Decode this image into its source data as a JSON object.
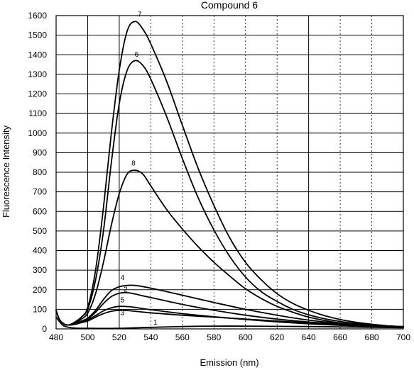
{
  "chart_data": {
    "type": "line",
    "title": "Compound 6",
    "xlabel": "Emission (nm)",
    "ylabel": "Fluorescence Intensity",
    "xlim": [
      480,
      700
    ],
    "ylim": [
      0,
      1600
    ],
    "x_ticks": [
      "480",
      "500",
      "520",
      "540",
      "560",
      "580",
      "600",
      "620",
      "640",
      "660",
      "680",
      "700"
    ],
    "y_ticks": [
      "0",
      "100",
      "200",
      "300",
      "400",
      "500",
      "600",
      "700",
      "800",
      "900",
      "1000",
      "1100",
      "1200",
      "1300",
      "1400",
      "1500",
      "1600"
    ],
    "grid": true,
    "series": [
      {
        "name": "1",
        "points": [
          [
            480,
            60
          ],
          [
            484,
            20
          ],
          [
            488,
            8
          ],
          [
            492,
            4
          ],
          [
            500,
            3
          ],
          [
            520,
            3
          ],
          [
            540,
            8
          ],
          [
            560,
            12
          ],
          [
            580,
            14
          ],
          [
            600,
            14
          ],
          [
            620,
            13
          ],
          [
            640,
            12
          ],
          [
            660,
            10
          ],
          [
            680,
            8
          ],
          [
            700,
            6
          ]
        ]
      },
      {
        "name": "2",
        "points": [
          [
            480,
            95
          ],
          [
            482,
            50
          ],
          [
            485,
            25
          ],
          [
            488,
            20
          ],
          [
            492,
            25
          ],
          [
            496,
            35
          ],
          [
            500,
            50
          ],
          [
            505,
            85
          ],
          [
            510,
            130
          ],
          [
            515,
            165
          ],
          [
            520,
            182
          ],
          [
            525,
            185
          ],
          [
            530,
            178
          ],
          [
            540,
            160
          ],
          [
            560,
            125
          ],
          [
            580,
            95
          ],
          [
            600,
            70
          ],
          [
            620,
            50
          ],
          [
            640,
            35
          ],
          [
            660,
            25
          ],
          [
            680,
            16
          ],
          [
            700,
            10
          ]
        ]
      },
      {
        "name": "3",
        "points": [
          [
            480,
            95
          ],
          [
            482,
            50
          ],
          [
            485,
            25
          ],
          [
            488,
            20
          ],
          [
            492,
            23
          ],
          [
            496,
            32
          ],
          [
            500,
            40
          ],
          [
            505,
            60
          ],
          [
            510,
            78
          ],
          [
            515,
            90
          ],
          [
            520,
            95
          ],
          [
            525,
            94
          ],
          [
            530,
            90
          ],
          [
            540,
            82
          ],
          [
            560,
            70
          ],
          [
            580,
            60
          ],
          [
            600,
            50
          ],
          [
            620,
            40
          ],
          [
            640,
            30
          ],
          [
            660,
            22
          ],
          [
            680,
            15
          ],
          [
            700,
            10
          ]
        ]
      },
      {
        "name": "4",
        "points": [
          [
            480,
            95
          ],
          [
            482,
            50
          ],
          [
            485,
            25
          ],
          [
            488,
            20
          ],
          [
            492,
            26
          ],
          [
            496,
            40
          ],
          [
            500,
            55
          ],
          [
            505,
            95
          ],
          [
            510,
            150
          ],
          [
            515,
            195
          ],
          [
            520,
            215
          ],
          [
            525,
            222
          ],
          [
            530,
            222
          ],
          [
            540,
            208
          ],
          [
            560,
            172
          ],
          [
            580,
            135
          ],
          [
            600,
            100
          ],
          [
            620,
            70
          ],
          [
            640,
            45
          ],
          [
            660,
            28
          ],
          [
            680,
            18
          ],
          [
            700,
            12
          ]
        ]
      },
      {
        "name": "5",
        "points": [
          [
            480,
            95
          ],
          [
            482,
            50
          ],
          [
            485,
            25
          ],
          [
            488,
            20
          ],
          [
            492,
            24
          ],
          [
            496,
            34
          ],
          [
            500,
            45
          ],
          [
            505,
            68
          ],
          [
            510,
            92
          ],
          [
            515,
            108
          ],
          [
            520,
            115
          ],
          [
            525,
            114
          ],
          [
            530,
            110
          ],
          [
            540,
            98
          ],
          [
            560,
            78
          ],
          [
            580,
            62
          ],
          [
            600,
            48
          ],
          [
            620,
            36
          ],
          [
            640,
            26
          ],
          [
            660,
            18
          ],
          [
            680,
            12
          ],
          [
            700,
            8
          ]
        ]
      },
      {
        "name": "6",
        "points": [
          [
            480,
            95
          ],
          [
            482,
            50
          ],
          [
            485,
            25
          ],
          [
            488,
            20
          ],
          [
            492,
            35
          ],
          [
            496,
            60
          ],
          [
            500,
            100
          ],
          [
            505,
            250
          ],
          [
            510,
            500
          ],
          [
            515,
            850
          ],
          [
            520,
            1150
          ],
          [
            525,
            1320
          ],
          [
            530,
            1370
          ],
          [
            535,
            1345
          ],
          [
            540,
            1275
          ],
          [
            550,
            1085
          ],
          [
            560,
            870
          ],
          [
            570,
            670
          ],
          [
            580,
            505
          ],
          [
            590,
            370
          ],
          [
            600,
            265
          ],
          [
            610,
            190
          ],
          [
            620,
            140
          ],
          [
            630,
            100
          ],
          [
            640,
            72
          ],
          [
            650,
            52
          ],
          [
            660,
            38
          ],
          [
            670,
            28
          ],
          [
            680,
            20
          ],
          [
            690,
            14
          ],
          [
            700,
            10
          ]
        ]
      },
      {
        "name": "7",
        "points": [
          [
            480,
            95
          ],
          [
            482,
            50
          ],
          [
            485,
            25
          ],
          [
            488,
            20
          ],
          [
            492,
            35
          ],
          [
            496,
            60
          ],
          [
            500,
            110
          ],
          [
            505,
            300
          ],
          [
            510,
            620
          ],
          [
            515,
            1000
          ],
          [
            520,
            1320
          ],
          [
            525,
            1520
          ],
          [
            530,
            1570
          ],
          [
            535,
            1530
          ],
          [
            540,
            1455
          ],
          [
            550,
            1265
          ],
          [
            560,
            1040
          ],
          [
            570,
            820
          ],
          [
            580,
            630
          ],
          [
            590,
            465
          ],
          [
            600,
            340
          ],
          [
            610,
            250
          ],
          [
            620,
            180
          ],
          [
            630,
            130
          ],
          [
            640,
            95
          ],
          [
            650,
            68
          ],
          [
            660,
            48
          ],
          [
            670,
            34
          ],
          [
            680,
            24
          ],
          [
            690,
            16
          ],
          [
            700,
            11
          ]
        ]
      },
      {
        "name": "8",
        "points": [
          [
            480,
            95
          ],
          [
            482,
            50
          ],
          [
            485,
            25
          ],
          [
            488,
            20
          ],
          [
            492,
            30
          ],
          [
            496,
            50
          ],
          [
            500,
            80
          ],
          [
            505,
            180
          ],
          [
            510,
            340
          ],
          [
            515,
            530
          ],
          [
            520,
            690
          ],
          [
            525,
            790
          ],
          [
            530,
            810
          ],
          [
            535,
            790
          ],
          [
            540,
            730
          ],
          [
            550,
            610
          ],
          [
            560,
            510
          ],
          [
            570,
            420
          ],
          [
            580,
            340
          ],
          [
            590,
            270
          ],
          [
            600,
            205
          ],
          [
            610,
            155
          ],
          [
            620,
            115
          ],
          [
            630,
            85
          ],
          [
            640,
            60
          ],
          [
            650,
            43
          ],
          [
            660,
            30
          ],
          [
            670,
            22
          ],
          [
            680,
            16
          ],
          [
            690,
            11
          ],
          [
            700,
            8
          ]
        ]
      }
    ],
    "series_label_positions": [
      {
        "name": "1",
        "x": 543,
        "y": 22
      },
      {
        "name": "2",
        "x": 524,
        "y": 190
      },
      {
        "name": "3",
        "x": 522,
        "y": 70
      },
      {
        "name": "4",
        "x": 522,
        "y": 250
      },
      {
        "name": "5",
        "x": 522,
        "y": 135
      },
      {
        "name": "6",
        "x": 531,
        "y": 1390
      },
      {
        "name": "7",
        "x": 533,
        "y": 1595
      },
      {
        "name": "8",
        "x": 529,
        "y": 835
      }
    ]
  }
}
